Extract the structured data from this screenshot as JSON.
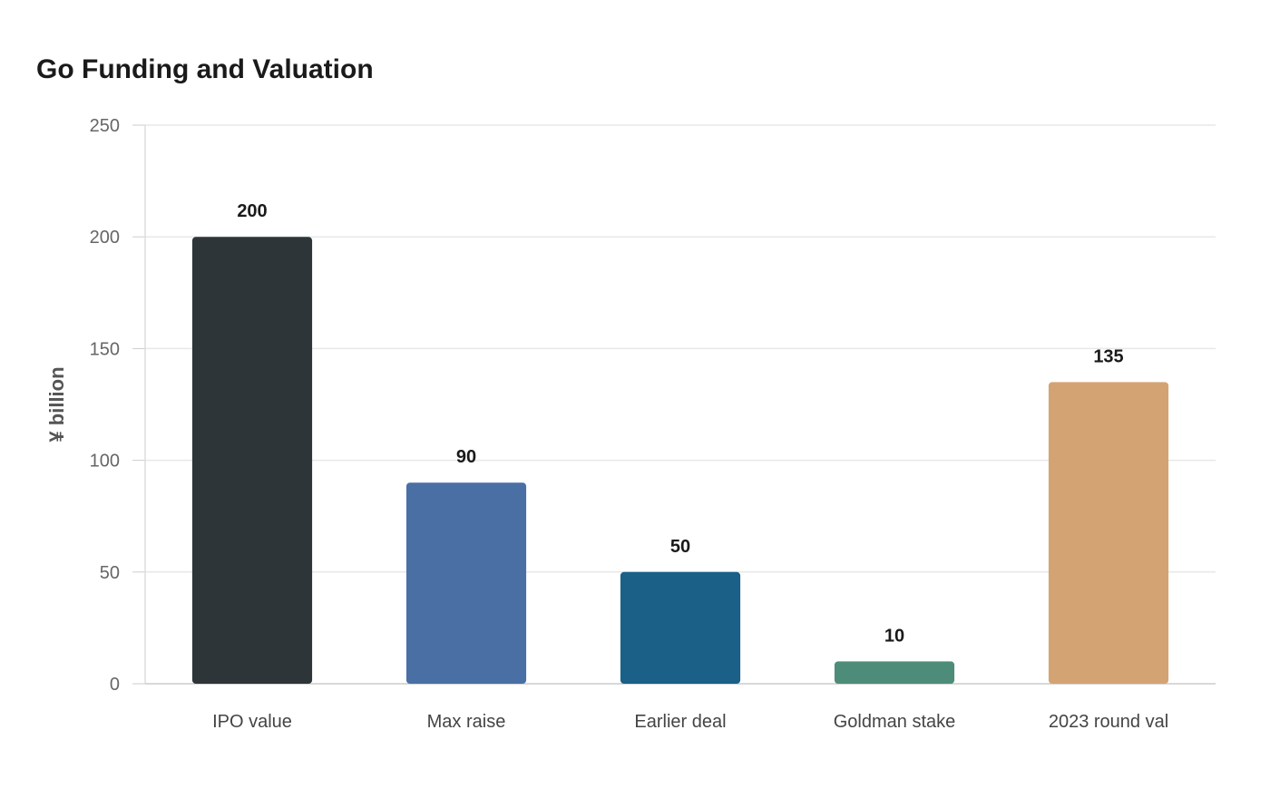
{
  "chart_data": {
    "type": "bar",
    "title": "Go Funding and Valuation",
    "xlabel": "",
    "ylabel": "¥ billion",
    "categories": [
      "IPO value",
      "Max raise",
      "Earlier deal",
      "Goldman stake",
      "2023 round val"
    ],
    "values": [
      200,
      90,
      50,
      10,
      135
    ],
    "colors": [
      "#2e3538",
      "#4a6fa5",
      "#1a6087",
      "#4e8c7a",
      "#d4a373"
    ],
    "ylim": [
      0,
      250
    ],
    "yticks": [
      0,
      50,
      100,
      150,
      200,
      250
    ],
    "grid": true,
    "legend": "none"
  }
}
